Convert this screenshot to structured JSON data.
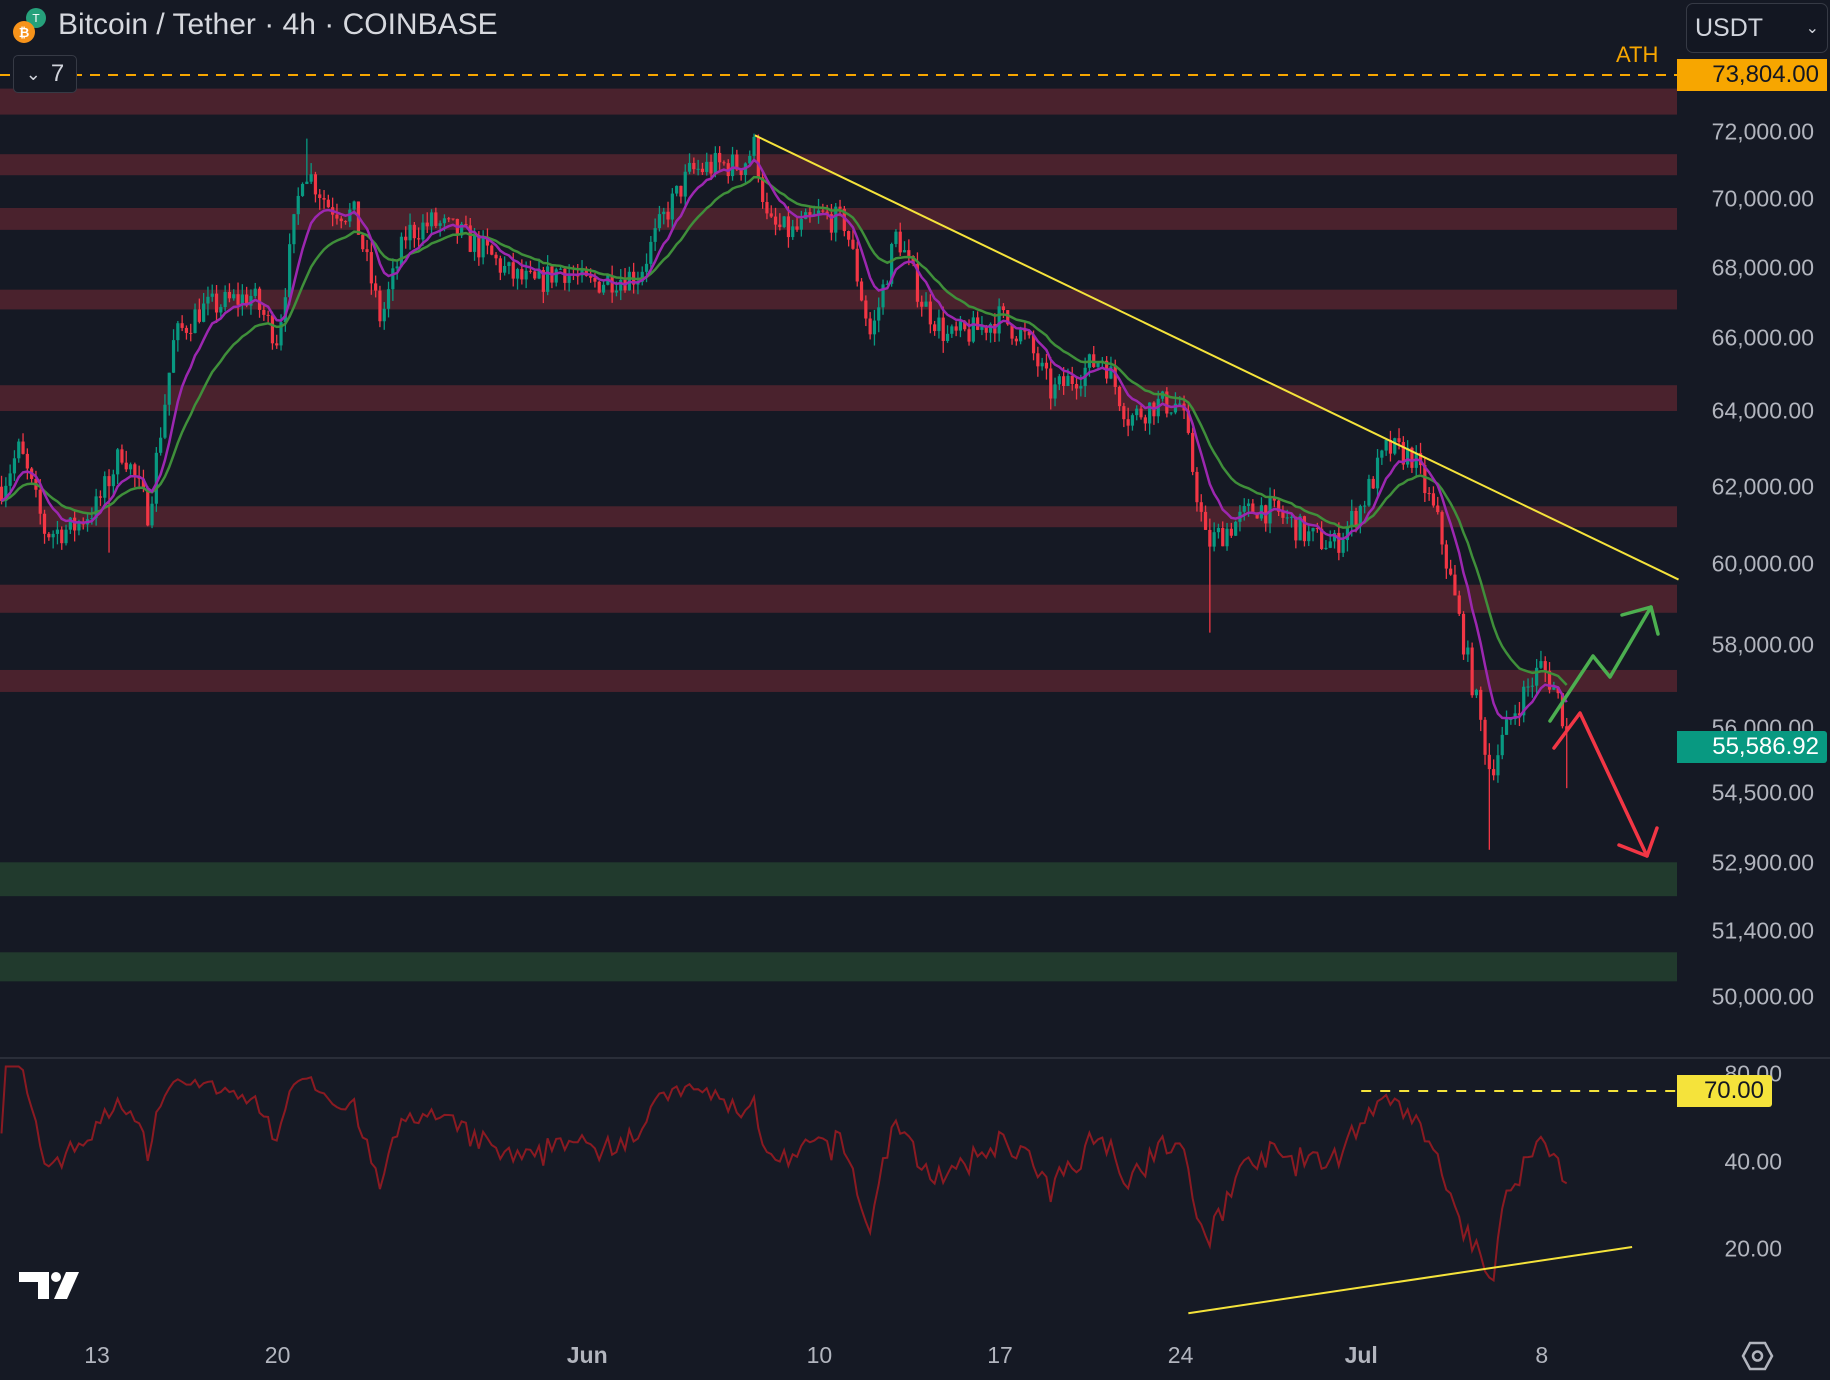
{
  "header": {
    "title": "Bitcoin / Tether · 4h · COINBASE",
    "indicator_count": "7",
    "currency": "USDT"
  },
  "colors": {
    "background": "#151924",
    "up": "#089981",
    "down": "#f23645",
    "resistance_zone": "#4a222d",
    "support_zone": "#213a2d",
    "ema_fast": "#9c27b0",
    "ema_slow": "#3f8f3a",
    "trendline": "#f5e33b",
    "ath": "#f7a600",
    "rsi": "#8b1a22"
  },
  "chart_data": {
    "type": "candlestick",
    "symbol": "Bitcoin / Tether",
    "interval": "4h",
    "exchange": "COINBASE",
    "price_scale": "log",
    "ath": {
      "label": "ATH",
      "value": 73804,
      "value_label": "73,804.00"
    },
    "last_price": {
      "value": 55586.92,
      "label": "55,586.92"
    },
    "x_unit": "days since May 13",
    "close_waypoints": [
      [
        -3.7,
        62000
      ],
      [
        -3,
        63000
      ],
      [
        -2,
        60800
      ],
      [
        -1,
        60900
      ],
      [
        0,
        61500
      ],
      [
        1,
        63000
      ],
      [
        2,
        61300
      ],
      [
        3,
        66000
      ],
      [
        4,
        66800
      ],
      [
        5,
        67000
      ],
      [
        6,
        67200
      ],
      [
        7,
        66000
      ],
      [
        8,
        71000
      ],
      [
        9,
        69800
      ],
      [
        10,
        69500
      ],
      [
        11,
        66500
      ],
      [
        12,
        69000
      ],
      [
        13,
        69300
      ],
      [
        14,
        69000
      ],
      [
        15,
        68500
      ],
      [
        16,
        67800
      ],
      [
        17,
        67500
      ],
      [
        18,
        68000
      ],
      [
        19,
        67500
      ],
      [
        20,
        67700
      ],
      [
        21,
        67800
      ],
      [
        22,
        69500
      ],
      [
        23,
        70800
      ],
      [
        24,
        71000
      ],
      [
        25,
        71000
      ],
      [
        25.5,
        71600
      ],
      [
        26,
        69200
      ],
      [
        27,
        69000
      ],
      [
        28,
        69500
      ],
      [
        29,
        69300
      ],
      [
        30,
        66000
      ],
      [
        31,
        69000
      ],
      [
        32,
        67000
      ],
      [
        33,
        66000
      ],
      [
        34,
        66200
      ],
      [
        35,
        66600
      ],
      [
        36,
        66000
      ],
      [
        37,
        64500
      ],
      [
        38,
        65000
      ],
      [
        39,
        65500
      ],
      [
        40,
        63800
      ],
      [
        41,
        64200
      ],
      [
        42,
        64200
      ],
      [
        43,
        60500
      ],
      [
        44,
        61000
      ],
      [
        45,
        61500
      ],
      [
        46,
        61200
      ],
      [
        47,
        60700
      ],
      [
        48,
        60500
      ],
      [
        49,
        61500
      ],
      [
        50,
        63000
      ],
      [
        51,
        62800
      ],
      [
        52,
        61000
      ],
      [
        53,
        58000
      ],
      [
        54,
        55000
      ],
      [
        55,
        56500
      ],
      [
        56,
        57500
      ],
      [
        56.6,
        56800
      ],
      [
        57.1,
        55586.92
      ]
    ],
    "notable_wicks": [
      [
        0.5,
        60300
      ],
      [
        8.1,
        71800
      ],
      [
        25.4,
        71900
      ],
      [
        43.1,
        58300
      ],
      [
        54,
        53200
      ],
      [
        56.9,
        54600
      ]
    ],
    "indicators": {
      "ema_fast_period": 9,
      "ema_slow_period": 21,
      "rsi_period": 14
    },
    "resistance_zones": [
      [
        72530,
        73330
      ],
      [
        70700,
        71330
      ],
      [
        69090,
        69730
      ],
      [
        66810,
        67370
      ],
      [
        64010,
        64710
      ],
      [
        60950,
        61490
      ],
      [
        58790,
        59490
      ],
      [
        56860,
        57390
      ]
    ],
    "support_zones": [
      [
        52170,
        52920
      ],
      [
        50330,
        50950
      ]
    ],
    "trendline": {
      "from": [
        25.5,
        71900
      ],
      "to": [
        61.3,
        59620
      ]
    },
    "y_ticks": [
      {
        "value": 72000,
        "label": "72,000.00"
      },
      {
        "value": 70000,
        "label": "70,000.00"
      },
      {
        "value": 68000,
        "label": "68,000.00"
      },
      {
        "value": 66000,
        "label": "66,000.00"
      },
      {
        "value": 64000,
        "label": "64,000.00"
      },
      {
        "value": 62000,
        "label": "62,000.00"
      },
      {
        "value": 60000,
        "label": "60,000.00"
      },
      {
        "value": 58000,
        "label": "58,000.00"
      },
      {
        "value": 56000,
        "label": "56,000.00"
      },
      {
        "value": 54500,
        "label": "54,500.00"
      },
      {
        "value": 52900,
        "label": "52,900.00"
      },
      {
        "value": 51400,
        "label": "51,400.00"
      },
      {
        "value": 50000,
        "label": "50,000.00"
      }
    ],
    "x_ticks": [
      {
        "day": 0,
        "label": "13"
      },
      {
        "day": 7,
        "label": "20"
      },
      {
        "day": 19,
        "label": "Jun"
      },
      {
        "day": 28,
        "label": "10"
      },
      {
        "day": 35,
        "label": "17"
      },
      {
        "day": 42,
        "label": "24"
      },
      {
        "day": 49,
        "label": "Jul"
      },
      {
        "day": 56,
        "label": "8"
      }
    ],
    "rsi_pane": {
      "scale": "log",
      "ticks": [
        {
          "value": 80,
          "label": "80.00"
        },
        {
          "value": 40,
          "label": "40.00"
        },
        {
          "value": 20,
          "label": "20.00"
        }
      ],
      "level": {
        "value": 70,
        "label": "70.00",
        "from_day": 49
      },
      "divergence_line": {
        "from": [
          42.3,
          12
        ],
        "to": [
          59.5,
          20.3
        ]
      }
    }
  }
}
